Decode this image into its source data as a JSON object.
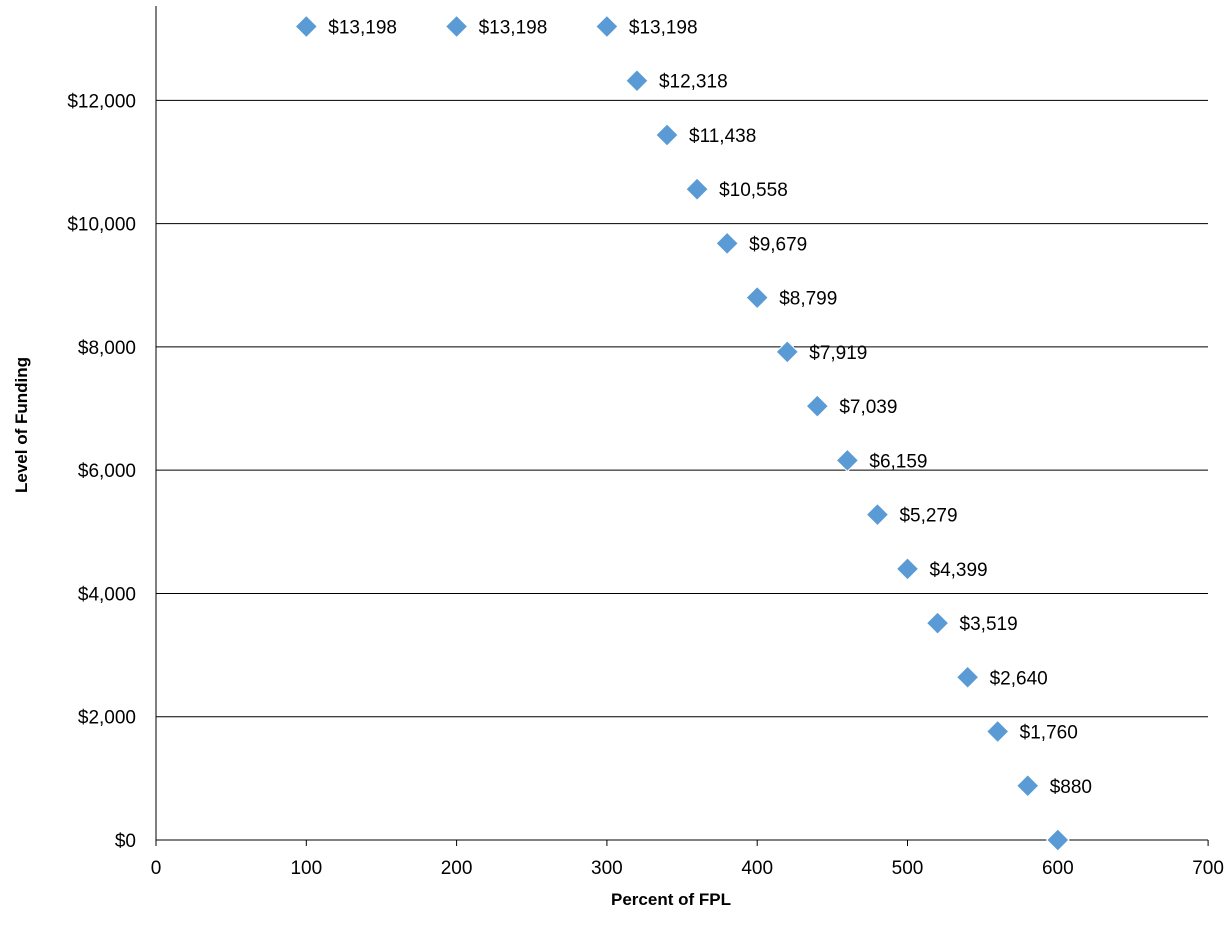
{
  "chart_data": {
    "type": "scatter",
    "title": "",
    "xlabel": "Percent of FPL",
    "ylabel": "Level of Funding",
    "xlim": [
      0,
      700
    ],
    "ylim": [
      0,
      13198
    ],
    "x_ticks": [
      0,
      100,
      200,
      300,
      400,
      500,
      600,
      700
    ],
    "x_tick_labels": [
      "0",
      "100",
      "200",
      "300",
      "400",
      "500",
      "600",
      "700"
    ],
    "y_ticks": [
      0,
      2000,
      4000,
      6000,
      8000,
      10000,
      12000
    ],
    "y_tick_labels": [
      "$0",
      "$2,000",
      "$4,000",
      "$6,000",
      "$8,000",
      "$10,000",
      "$12,000"
    ],
    "grid": "horizontal",
    "legend": "none",
    "marker": "diamond",
    "marker_color": "#5B9BD5",
    "series": [
      {
        "points": [
          {
            "x": 100,
            "y": 13198,
            "label": "$13,198"
          },
          {
            "x": 200,
            "y": 13198,
            "label": "$13,198"
          },
          {
            "x": 300,
            "y": 13198,
            "label": "$13,198"
          },
          {
            "x": 320,
            "y": 12318,
            "label": "$12,318"
          },
          {
            "x": 340,
            "y": 11438,
            "label": "$11,438"
          },
          {
            "x": 360,
            "y": 10558,
            "label": "$10,558"
          },
          {
            "x": 380,
            "y": 9679,
            "label": "$9,679"
          },
          {
            "x": 400,
            "y": 8799,
            "label": "$8,799"
          },
          {
            "x": 420,
            "y": 7919,
            "label": "$7,919"
          },
          {
            "x": 440,
            "y": 7039,
            "label": "$7,039"
          },
          {
            "x": 460,
            "y": 6159,
            "label": "$6,159"
          },
          {
            "x": 480,
            "y": 5279,
            "label": "$5,279"
          },
          {
            "x": 500,
            "y": 4399,
            "label": "$4,399"
          },
          {
            "x": 520,
            "y": 3519,
            "label": "$3,519"
          },
          {
            "x": 540,
            "y": 2640,
            "label": "$2,640"
          },
          {
            "x": 560,
            "y": 1760,
            "label": "$1,760"
          },
          {
            "x": 580,
            "y": 880,
            "label": "$880"
          },
          {
            "x": 600,
            "y": 0,
            "label": ""
          }
        ]
      }
    ]
  }
}
